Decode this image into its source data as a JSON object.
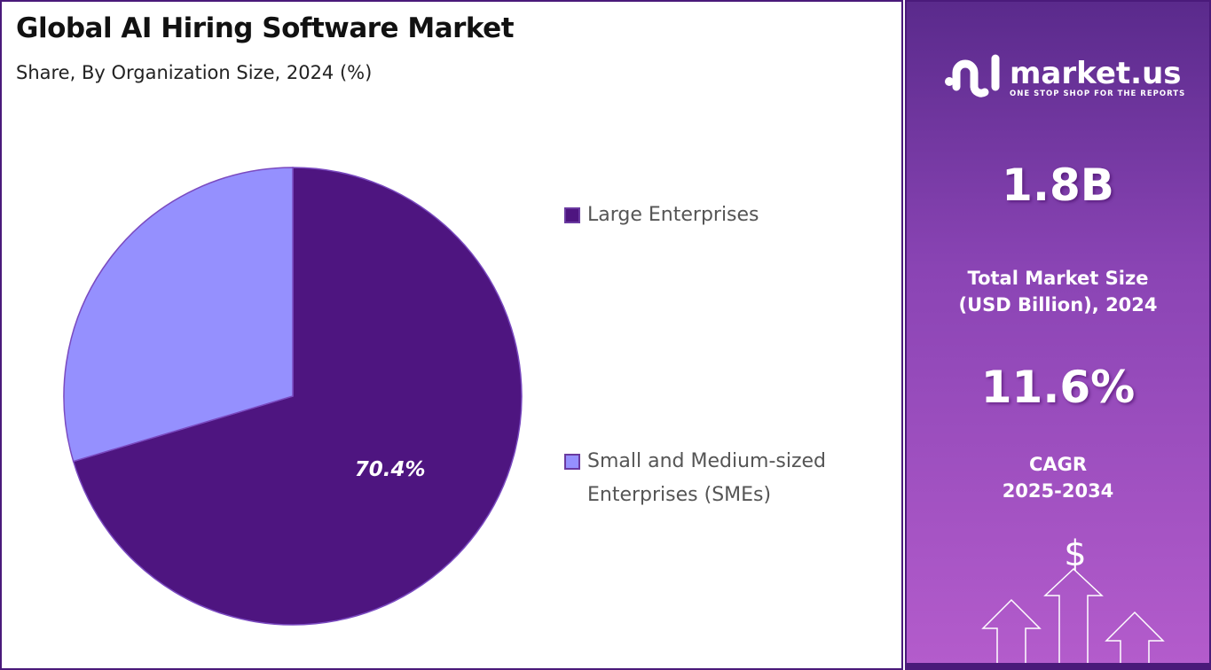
{
  "chart_data": {
    "type": "pie",
    "title": "Global AI Hiring Software Market",
    "subtitle": "Share, By Organization Size, 2024 (%)",
    "categories": [
      "Large Enterprises",
      "Small and Medium-sized Enterprises (SMEs)"
    ],
    "values": [
      70.4,
      29.6
    ],
    "data_labels": [
      "70.4%",
      ""
    ],
    "colors": [
      "#4e1580",
      "#9590fe"
    ],
    "legend_placement": "right"
  },
  "legend": {
    "items": [
      {
        "line1": "Large Enterprises",
        "line2": ""
      },
      {
        "line1": "Small and Medium-sized",
        "line2": "Enterprises (SMEs)"
      }
    ]
  },
  "sidebar": {
    "logo_name": "market.us",
    "logo_tagline": "ONE STOP SHOP FOR THE REPORTS",
    "market_size": "1.8B",
    "market_size_label1": "Total Market Size",
    "market_size_label2": "(USD Billion), 2024",
    "cagr": "11.6%",
    "cagr_label1": "CAGR",
    "cagr_label2": "2025-2034",
    "icon": "dollar-growth-arrows-icon"
  }
}
